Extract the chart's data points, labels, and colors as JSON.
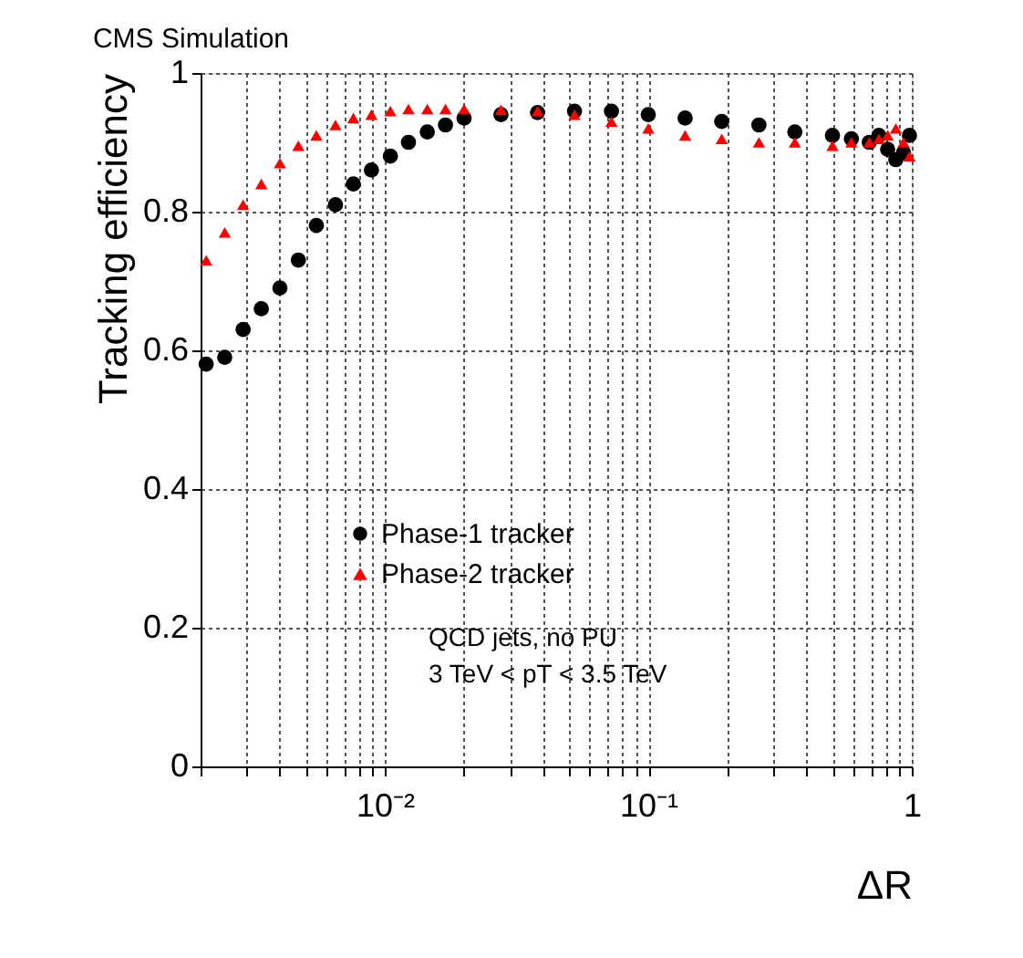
{
  "chart_data": {
    "type": "scatter",
    "title": "CMS Simulation",
    "xlabel": "ΔR",
    "ylabel": "Tracking efficiency",
    "log": "x",
    "x": [
      0.0021,
      0.00247,
      0.0029,
      0.0034,
      0.004,
      0.0047,
      0.0055,
      0.0065,
      0.0076,
      0.0089,
      0.0105,
      0.0123,
      0.0145,
      0.017,
      0.02,
      0.0276,
      0.038,
      0.0525,
      0.0725,
      0.1,
      0.138,
      0.19,
      0.263,
      0.36,
      0.5,
      0.59,
      0.69,
      0.75,
      0.81,
      0.87,
      0.93,
      0.98
    ],
    "series": [
      {
        "name": "Phase-1 tracker",
        "color": "#000000",
        "marker": "circle",
        "values": [
          0.58,
          0.59,
          0.63,
          0.66,
          0.69,
          0.73,
          0.78,
          0.81,
          0.84,
          0.86,
          0.88,
          0.9,
          0.915,
          0.925,
          0.935,
          0.94,
          0.943,
          0.945,
          0.945,
          0.94,
          0.935,
          0.93,
          0.925,
          0.915,
          0.91,
          0.905,
          0.9,
          0.91,
          0.89,
          0.875,
          0.885,
          0.91
        ]
      },
      {
        "name": "Phase-2 tracker",
        "color": "#ff0000",
        "marker": "triangle",
        "values": [
          0.73,
          0.77,
          0.81,
          0.84,
          0.87,
          0.895,
          0.91,
          0.925,
          0.935,
          0.94,
          0.945,
          0.948,
          0.948,
          0.948,
          0.948,
          0.947,
          0.945,
          0.94,
          0.93,
          0.92,
          0.91,
          0.905,
          0.9,
          0.9,
          0.895,
          0.9,
          0.9,
          0.905,
          0.91,
          0.92,
          0.9,
          0.88
        ]
      }
    ],
    "xlim": [
      0.002,
      1
    ],
    "ylim": [
      0,
      1
    ],
    "xticks": [
      {
        "value": 0.002,
        "label": null
      },
      {
        "value": 0.003,
        "label": null
      },
      {
        "value": 0.004,
        "label": null
      },
      {
        "value": 0.005,
        "label": null
      },
      {
        "value": 0.006,
        "label": null
      },
      {
        "value": 0.007,
        "label": null
      },
      {
        "value": 0.008,
        "label": null
      },
      {
        "value": 0.009,
        "label": null
      },
      {
        "value": 0.01,
        "label": "10⁻²"
      },
      {
        "value": 0.02,
        "label": null
      },
      {
        "value": 0.03,
        "label": null
      },
      {
        "value": 0.04,
        "label": null
      },
      {
        "value": 0.05,
        "label": null
      },
      {
        "value": 0.06,
        "label": null
      },
      {
        "value": 0.07,
        "label": null
      },
      {
        "value": 0.08,
        "label": null
      },
      {
        "value": 0.09,
        "label": null
      },
      {
        "value": 0.1,
        "label": "10⁻¹"
      },
      {
        "value": 0.2,
        "label": null
      },
      {
        "value": 0.3,
        "label": null
      },
      {
        "value": 0.4,
        "label": null
      },
      {
        "value": 0.5,
        "label": null
      },
      {
        "value": 0.6,
        "label": null
      },
      {
        "value": 0.7,
        "label": null
      },
      {
        "value": 0.8,
        "label": null
      },
      {
        "value": 0.9,
        "label": null
      },
      {
        "value": 1,
        "label": "1"
      }
    ],
    "yticks": [
      0,
      0.2,
      0.4,
      0.6,
      0.8,
      1
    ],
    "grid": true,
    "legend": "left",
    "annotations": [
      "QCD jets, no PU",
      "3 TeV < pT < 3.5 TeV"
    ]
  }
}
